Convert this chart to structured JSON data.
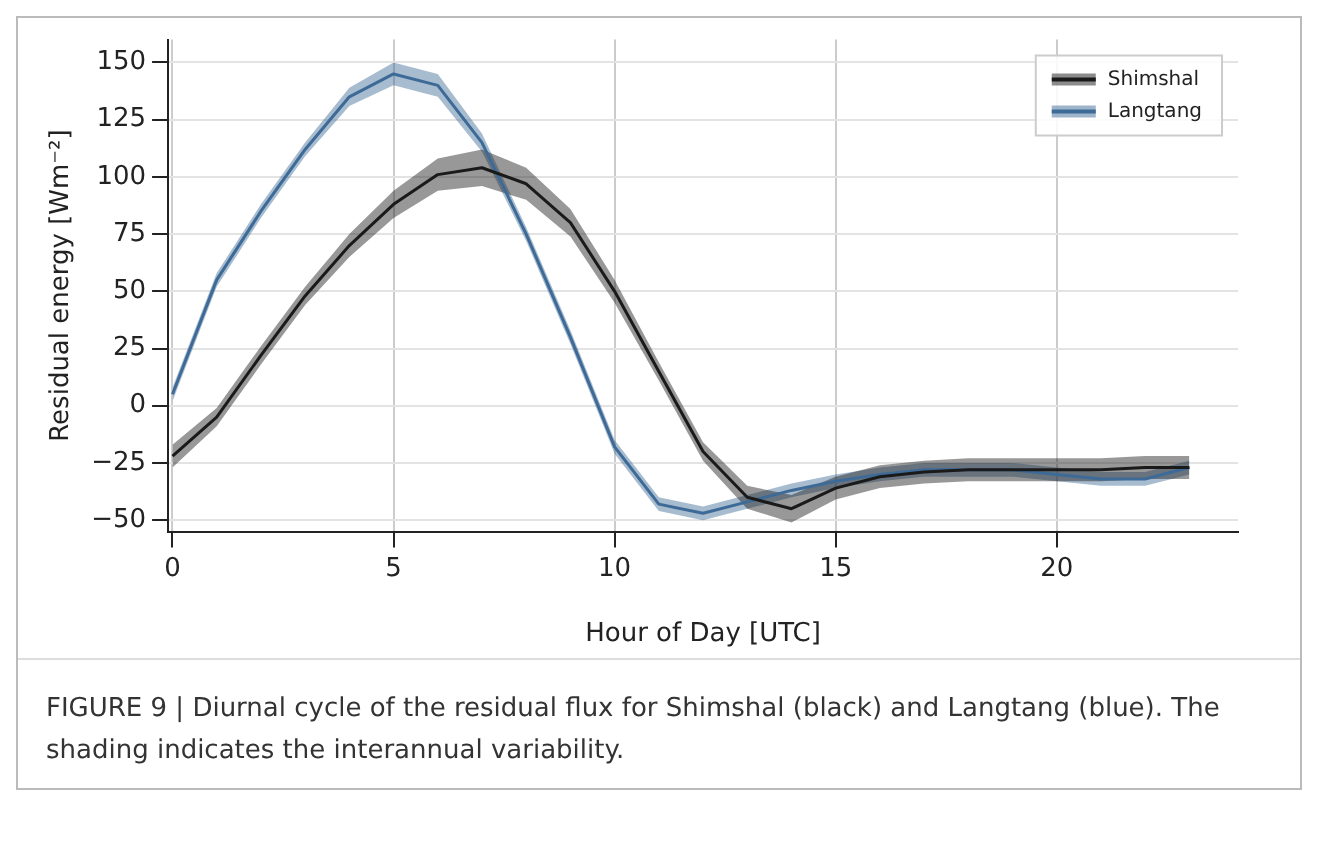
{
  "chart_data": {
    "type": "line",
    "xlabel": "Hour of Day [UTC]",
    "ylabel": "Residual energy [Wm⁻²]",
    "x": [
      0,
      1,
      2,
      3,
      4,
      5,
      6,
      7,
      8,
      9,
      10,
      11,
      12,
      13,
      14,
      15,
      16,
      17,
      18,
      19,
      20,
      21,
      22,
      23
    ],
    "series": [
      {
        "name": "Shimshal",
        "color": "#1a1a1a",
        "values": [
          -22,
          -5,
          22,
          48,
          70,
          88,
          101,
          104,
          97,
          80,
          50,
          15,
          -20,
          -40,
          -45,
          -36,
          -31,
          -29,
          -28,
          -28,
          -28,
          -28,
          -27,
          -27
        ],
        "lower": [
          -27,
          -9,
          18,
          44,
          65,
          82,
          94,
          96,
          90,
          74,
          45,
          11,
          -24,
          -45,
          -51,
          -41,
          -36,
          -34,
          -33,
          -33,
          -33,
          -33,
          -32,
          -32
        ],
        "upper": [
          -17,
          -1,
          26,
          52,
          75,
          94,
          108,
          112,
          104,
          86,
          55,
          19,
          -16,
          -35,
          -39,
          -31,
          -26,
          -24,
          -23,
          -23,
          -23,
          -23,
          -22,
          -22
        ]
      },
      {
        "name": "Langtang",
        "color": "#3d6a96",
        "values": [
          5,
          55,
          85,
          112,
          135,
          145,
          140,
          115,
          75,
          30,
          -18,
          -43,
          -47,
          -42,
          -37,
          -33,
          -30,
          -28,
          -28,
          -28,
          -30,
          -32,
          -32,
          -27
        ],
        "lower": [
          2,
          52,
          82,
          109,
          131,
          140,
          135,
          111,
          72,
          27,
          -21,
          -46,
          -50,
          -45,
          -40,
          -36,
          -33,
          -31,
          -31,
          -31,
          -33,
          -35,
          -35,
          -30
        ],
        "upper": [
          8,
          58,
          88,
          115,
          139,
          150,
          145,
          119,
          78,
          33,
          -15,
          -40,
          -44,
          -39,
          -34,
          -30,
          -27,
          -25,
          -25,
          -25,
          -27,
          -29,
          -29,
          -24
        ]
      }
    ],
    "xlim": [
      -0.1,
      24.1
    ],
    "ylim": [
      -55,
      160
    ],
    "xticks": [
      0,
      5,
      10,
      15,
      20
    ],
    "yticks": [
      -50,
      -25,
      0,
      25,
      50,
      75,
      100,
      125,
      150
    ],
    "grid": true,
    "legend": "top right",
    "marker": "none",
    "line_style": "solid",
    "annotations": [
      "FIGURE 9 | Diurnal cycle of the residual flux for Shimshal (black) and Langtang (blue). The shading indicates the interannual variability."
    ]
  }
}
